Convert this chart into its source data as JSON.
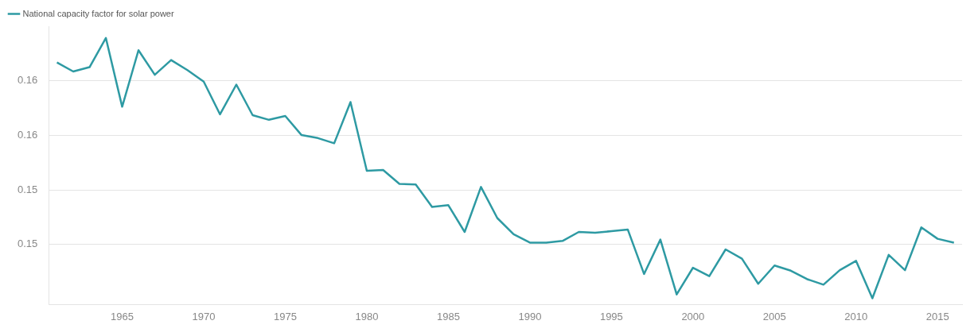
{
  "chart_data": {
    "type": "line",
    "x": [
      1961,
      1962,
      1963,
      1964,
      1965,
      1966,
      1967,
      1968,
      1969,
      1970,
      1971,
      1972,
      1973,
      1974,
      1975,
      1976,
      1977,
      1978,
      1979,
      1980,
      1981,
      1982,
      1983,
      1984,
      1985,
      1986,
      1987,
      1988,
      1989,
      1990,
      1991,
      1992,
      1993,
      1994,
      1995,
      1996,
      1997,
      1998,
      1999,
      2000,
      2001,
      2002,
      2003,
      2004,
      2005,
      2006,
      2007,
      2008,
      2009,
      2010,
      2011,
      2012,
      2013,
      2014,
      2015,
      2016
    ],
    "series": [
      {
        "name": "National capacity factor for solar power",
        "color": "#2e9aa3",
        "values": [
          0.15867,
          0.15834,
          0.1585,
          0.15957,
          0.15705,
          0.15912,
          0.15822,
          0.15876,
          0.15839,
          0.15797,
          0.15677,
          0.15786,
          0.15674,
          0.15657,
          0.15671,
          0.15601,
          0.1559,
          0.15571,
          0.15722,
          0.1547,
          0.15473,
          0.15422,
          0.1542,
          0.15338,
          0.15344,
          0.15246,
          0.15411,
          0.15297,
          0.15238,
          0.15207,
          0.15207,
          0.15213,
          0.15246,
          0.15243,
          0.15249,
          0.15255,
          0.15092,
          0.15218,
          0.15017,
          0.15115,
          0.15084,
          0.15182,
          0.15148,
          0.15056,
          0.15123,
          0.15104,
          0.15073,
          0.15053,
          0.15106,
          0.1514,
          0.15003,
          0.15162,
          0.15106,
          0.15263,
          0.15221,
          0.15207
        ]
      }
    ],
    "xlim": [
      1960.5,
      2016.5
    ],
    "xticks": [
      1965,
      1970,
      1975,
      1980,
      1985,
      1990,
      1995,
      2000,
      2005,
      2010,
      2015
    ],
    "ylim": [
      0.1498,
      0.16
    ],
    "yticks": [
      {
        "value": 0.158,
        "label": "0.16"
      },
      {
        "value": 0.156,
        "label": "0.16"
      },
      {
        "value": 0.154,
        "label": "0.15"
      },
      {
        "value": 0.152,
        "label": "0.15"
      }
    ],
    "grid": "y",
    "legend": "top left",
    "marker": "none",
    "line_style": "solid"
  }
}
